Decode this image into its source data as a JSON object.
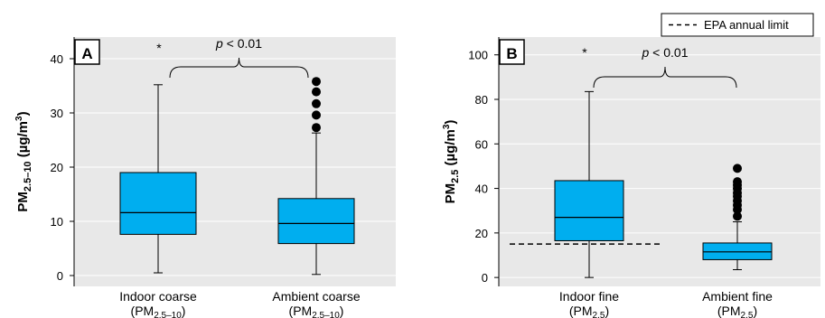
{
  "colors": {
    "panel_bg": "#e8e8e8",
    "box_fill": "#00aeef",
    "stroke": "#000000"
  },
  "legend": {
    "label": "EPA annual limit",
    "line_style": "dashed"
  },
  "chart_data": [
    {
      "type": "box",
      "panel_label": "A",
      "ylabel": {
        "main": "PM",
        "sub": "2.5–10",
        "unit_pre": " (µg/m",
        "unit_sup": "3",
        "unit_post": ")"
      },
      "ylim": [
        -2,
        44
      ],
      "yticks": [
        0,
        10,
        20,
        30,
        40
      ],
      "grid": "horizontal",
      "annotation": {
        "star": "*",
        "p_italic": "p",
        "p_rest": " < 0.01"
      },
      "categories": [
        {
          "name": "Indoor coarse",
          "sub_main": "(PM",
          "sub_sub": "2.5–10",
          "sub_close": ")",
          "whisker_low": 0.5,
          "q1": 7.6,
          "median": 11.6,
          "q3": 19.0,
          "whisker_high": 35.2,
          "outliers": []
        },
        {
          "name": "Ambient coarse",
          "sub_main": "(PM",
          "sub_sub": "2.5–10",
          "sub_close": ")",
          "whisker_low": 0.2,
          "q1": 5.9,
          "median": 9.6,
          "q3": 14.2,
          "whisker_high": 26.3,
          "outliers": [
            27.3,
            29.6,
            31.7,
            33.9,
            35.8
          ]
        }
      ]
    },
    {
      "type": "box",
      "panel_label": "B",
      "ylabel": {
        "main": "PM",
        "sub": "2.5",
        "unit_pre": " (µg/m",
        "unit_sup": "3",
        "unit_post": ")"
      },
      "ylim": [
        -4,
        108
      ],
      "yticks": [
        0,
        20,
        40,
        60,
        80,
        100
      ],
      "grid": "horizontal",
      "epa_limit": 15,
      "annotation": {
        "star": "*",
        "p_italic": "p",
        "p_rest": " < 0.01"
      },
      "categories": [
        {
          "name": "Indoor fine",
          "sub_main": "(PM",
          "sub_sub": "2.5",
          "sub_close": ")",
          "whisker_low": 0,
          "q1": 16.5,
          "median": 27.0,
          "q3": 43.5,
          "whisker_high": 83.5,
          "outliers": []
        },
        {
          "name": "Ambient fine",
          "sub_main": "(PM",
          "sub_sub": "2.5",
          "sub_close": ")",
          "whisker_low": 3.5,
          "q1": 8.0,
          "median": 11.5,
          "q3": 15.5,
          "whisker_high": 25.0,
          "outliers": [
            27.5,
            30.5,
            32.5,
            34.5,
            36.5,
            38.0,
            40.0,
            41.5,
            43.0,
            49.0
          ]
        }
      ]
    }
  ]
}
